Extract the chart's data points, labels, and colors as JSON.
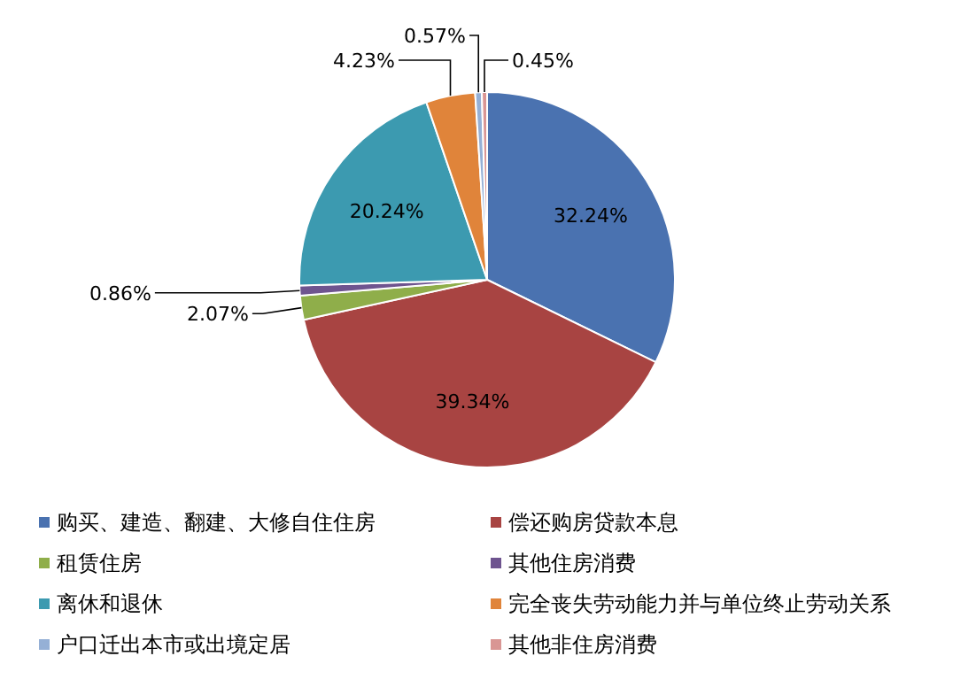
{
  "chart_data": {
    "type": "pie",
    "categories": [
      "购买、建造、翻建、大修自住住房",
      "偿还购房贷款本息",
      "租赁住房",
      "其他住房消费",
      "离休和退休",
      "完全丧失劳动能力并与单位终止劳动关系",
      "户口迁出本市或出境定居",
      "其他非住房消费"
    ],
    "values": [
      32.24,
      39.34,
      2.07,
      0.86,
      20.24,
      4.23,
      0.57,
      0.45
    ],
    "colors": [
      "#4a72b0",
      "#a84442",
      "#8fae4a",
      "#6e548f",
      "#3c9ab0",
      "#e0843a",
      "#95b0d6",
      "#d99694"
    ],
    "value_labels": [
      "32.24%",
      "39.34%",
      "2.07%",
      "0.86%",
      "20.24%",
      "4.23%",
      "0.57%",
      "0.45%"
    ],
    "legend": "bottom"
  }
}
